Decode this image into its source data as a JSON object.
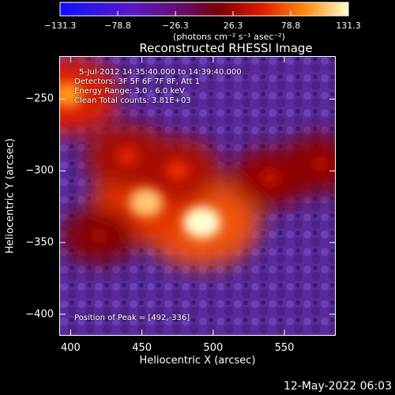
{
  "chart_data": {
    "type": "heatmap",
    "title": "Reconstructed RHESSI Image",
    "xlabel": "Heliocentric X (arcsec)",
    "ylabel": "Heliocentric Y (arcsec)",
    "xlim": [
      392,
      586
    ],
    "ylim": [
      -415,
      -220
    ],
    "x_ticks": [
      400,
      450,
      500,
      550
    ],
    "y_ticks": [
      -250,
      -300,
      -350,
      -400
    ],
    "colorbar": {
      "tick_labels": [
        "-131.3",
        "-78.8",
        "-26.3",
        "26.3",
        "78.8",
        "131.3"
      ],
      "range": [
        -131.3,
        131.3
      ],
      "unit_label": "(photons cm⁻² s⁻¹ asec⁻²)"
    },
    "peak_position": [
      492,
      -336
    ],
    "sources": [
      {
        "x": 492,
        "y": -336,
        "value": 131.3
      },
      {
        "x": 453,
        "y": -322,
        "value": 112
      },
      {
        "x": 398,
        "y": -247,
        "value": 95
      },
      {
        "x": 475,
        "y": -300,
        "value": 60
      },
      {
        "x": 440,
        "y": -290,
        "value": 55
      },
      {
        "x": 540,
        "y": -305,
        "value": 40
      },
      {
        "x": 575,
        "y": -295,
        "value": 35
      },
      {
        "x": 420,
        "y": -345,
        "value": 30
      }
    ],
    "annotations": {
      "time_range": "5-Jul-2012 14:35:40.000 to 14:39:40.000",
      "detectors": "Detectors: 3F 5F 6F 7F 8F, Att 1",
      "energy": "Energy Range: 3.0 - 6.0 keV",
      "clean": "Clean     Total counts: 3.81E+03",
      "peak": "Position of Peak = [492,-336]"
    }
  },
  "footer": {
    "date": "12-May-2022 06:03"
  }
}
